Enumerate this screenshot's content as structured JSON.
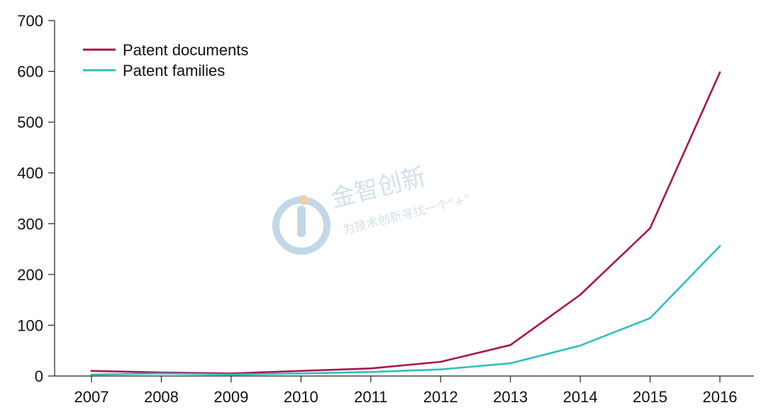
{
  "chart_data": {
    "type": "line",
    "title": "",
    "xlabel": "",
    "ylabel": "",
    "x": [
      "2007",
      "2008",
      "2009",
      "2010",
      "2011",
      "2012",
      "2013",
      "2014",
      "2015",
      "2016"
    ],
    "ylim": [
      0,
      700
    ],
    "yticks": [
      "0",
      "100",
      "200",
      "300",
      "400",
      "500",
      "600",
      "700"
    ],
    "grid": false,
    "legend_position": "top-left",
    "series": [
      {
        "name": "Patent documents",
        "color": "#a8174a",
        "values": [
          10,
          7,
          5,
          10,
          15,
          28,
          61,
          160,
          291,
          598
        ]
      },
      {
        "name": "Patent families",
        "color": "#2fbfbf",
        "values": [
          3,
          5,
          3,
          5,
          8,
          13,
          25,
          60,
          114,
          256
        ]
      }
    ]
  },
  "watermark": {
    "brand": "金智创新",
    "tagline": "为技术创新寻找一个“+”"
  }
}
